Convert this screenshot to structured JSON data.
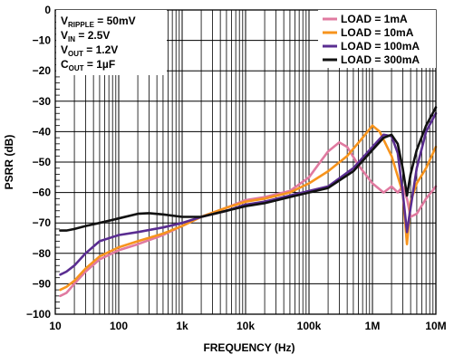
{
  "chart_data": {
    "type": "line",
    "title": "",
    "xlabel": "FREQUENCY (Hz)",
    "ylabel": "PSRR (dB)",
    "x_scale": "log",
    "xlim": [
      10,
      10000000
    ],
    "ylim": [
      -100,
      0
    ],
    "x_ticks": [
      {
        "value": 10,
        "label": "10"
      },
      {
        "value": 100,
        "label": "100"
      },
      {
        "value": 1000,
        "label": "1k"
      },
      {
        "value": 10000,
        "label": "10k"
      },
      {
        "value": 100000,
        "label": "100k"
      },
      {
        "value": 1000000,
        "label": "1M"
      },
      {
        "value": 10000000,
        "label": "10M"
      }
    ],
    "y_ticks": [
      0,
      -10,
      -20,
      -30,
      -40,
      -50,
      -60,
      -70,
      -80,
      -90,
      -100
    ],
    "grid": true,
    "annotations": [
      {
        "main": "V",
        "sub": "RIPPLE",
        "rest": " = 50mV"
      },
      {
        "main": "V",
        "sub": "IN",
        "rest": " = 2.5V"
      },
      {
        "main": "V",
        "sub": "OUT",
        "rest": " = 1.2V"
      },
      {
        "main": "C",
        "sub": "OUT",
        "rest": " = 1µF"
      }
    ],
    "legend_position": "top-right",
    "series": [
      {
        "name": "LOAD = 1mA",
        "color": "#e07aa0",
        "points": [
          [
            12,
            -94
          ],
          [
            15,
            -93
          ],
          [
            20,
            -90
          ],
          [
            30,
            -86
          ],
          [
            50,
            -82
          ],
          [
            100,
            -79
          ],
          [
            200,
            -77
          ],
          [
            500,
            -74
          ],
          [
            1000,
            -71
          ],
          [
            2000,
            -68
          ],
          [
            5000,
            -65
          ],
          [
            10000,
            -62.5
          ],
          [
            20000,
            -61.5
          ],
          [
            50000,
            -59.5
          ],
          [
            100000,
            -55
          ],
          [
            150000,
            -50
          ],
          [
            200000,
            -46.5
          ],
          [
            300000,
            -43.5
          ],
          [
            400000,
            -45
          ],
          [
            600000,
            -51
          ],
          [
            1000000,
            -57
          ],
          [
            1500000,
            -60
          ],
          [
            2000000,
            -58
          ],
          [
            2500000,
            -60
          ],
          [
            3000000,
            -58
          ],
          [
            3500000,
            -62
          ],
          [
            4000000,
            -68
          ],
          [
            5000000,
            -67
          ],
          [
            7000000,
            -62
          ],
          [
            10000000,
            -58
          ]
        ]
      },
      {
        "name": "LOAD = 10mA",
        "color": "#f7941d",
        "points": [
          [
            12,
            -92
          ],
          [
            15,
            -91
          ],
          [
            20,
            -89
          ],
          [
            30,
            -85
          ],
          [
            50,
            -81
          ],
          [
            100,
            -78
          ],
          [
            200,
            -76
          ],
          [
            500,
            -73.5
          ],
          [
            1000,
            -71
          ],
          [
            2000,
            -68
          ],
          [
            5000,
            -65
          ],
          [
            10000,
            -63
          ],
          [
            20000,
            -62
          ],
          [
            50000,
            -60
          ],
          [
            100000,
            -57
          ],
          [
            200000,
            -53
          ],
          [
            400000,
            -48
          ],
          [
            700000,
            -42
          ],
          [
            1000000,
            -38
          ],
          [
            1300000,
            -40
          ],
          [
            2000000,
            -48
          ],
          [
            3000000,
            -60
          ],
          [
            3500000,
            -77
          ],
          [
            4000000,
            -63
          ],
          [
            5000000,
            -57
          ],
          [
            7000000,
            -52
          ],
          [
            10000000,
            -45
          ]
        ]
      },
      {
        "name": "LOAD = 100mA",
        "color": "#5a2d91",
        "points": [
          [
            12,
            -87
          ],
          [
            15,
            -86
          ],
          [
            20,
            -84
          ],
          [
            30,
            -80
          ],
          [
            50,
            -76
          ],
          [
            100,
            -74
          ],
          [
            200,
            -73
          ],
          [
            500,
            -71.5
          ],
          [
            1000,
            -70
          ],
          [
            2000,
            -68
          ],
          [
            5000,
            -66
          ],
          [
            10000,
            -64
          ],
          [
            20000,
            -63
          ],
          [
            50000,
            -61
          ],
          [
            100000,
            -59.5
          ],
          [
            200000,
            -58
          ],
          [
            500000,
            -52
          ],
          [
            1000000,
            -45
          ],
          [
            1500000,
            -41
          ],
          [
            2000000,
            -41.5
          ],
          [
            2500000,
            -47
          ],
          [
            3000000,
            -60
          ],
          [
            3500000,
            -73
          ],
          [
            4000000,
            -65
          ],
          [
            5000000,
            -52
          ],
          [
            7000000,
            -40
          ],
          [
            10000000,
            -34
          ]
        ]
      },
      {
        "name": "LOAD = 300mA",
        "color": "#111111",
        "points": [
          [
            12,
            -72.5
          ],
          [
            15,
            -72.5
          ],
          [
            20,
            -72
          ],
          [
            30,
            -71
          ],
          [
            50,
            -70
          ],
          [
            100,
            -68.5
          ],
          [
            200,
            -67
          ],
          [
            300,
            -66.8
          ],
          [
            500,
            -67.2
          ],
          [
            1000,
            -68
          ],
          [
            2000,
            -68
          ],
          [
            5000,
            -66
          ],
          [
            10000,
            -64.5
          ],
          [
            20000,
            -63.5
          ],
          [
            50000,
            -61.5
          ],
          [
            100000,
            -60
          ],
          [
            200000,
            -58.5
          ],
          [
            500000,
            -53
          ],
          [
            1000000,
            -46
          ],
          [
            1500000,
            -42
          ],
          [
            2000000,
            -41
          ],
          [
            2500000,
            -44
          ],
          [
            3000000,
            -52
          ],
          [
            3500000,
            -61
          ],
          [
            4000000,
            -54
          ],
          [
            5000000,
            -46
          ],
          [
            7000000,
            -38
          ],
          [
            10000000,
            -32
          ]
        ]
      }
    ]
  }
}
